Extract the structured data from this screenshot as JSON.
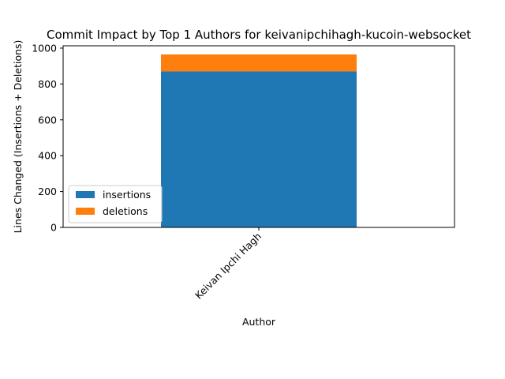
{
  "chart_data": {
    "type": "bar",
    "stacked": true,
    "title": "Commit Impact by Top 1 Authors for keivanipchihagh-kucoin-websocket",
    "xlabel": "Author",
    "ylabel": "Lines Changed (Insertions + Deletions)",
    "categories": [
      "Keivan Ipchi Hagh"
    ],
    "series": [
      {
        "name": "insertions",
        "values": [
          870
        ],
        "color": "#1f77b4"
      },
      {
        "name": "deletions",
        "values": [
          95
        ],
        "color": "#ff7f0e"
      }
    ],
    "ylim": [
      0,
      1013
    ],
    "yticks": [
      0,
      200,
      400,
      600,
      800,
      1000
    ],
    "legend_position": "lower-left",
    "grid": false
  }
}
